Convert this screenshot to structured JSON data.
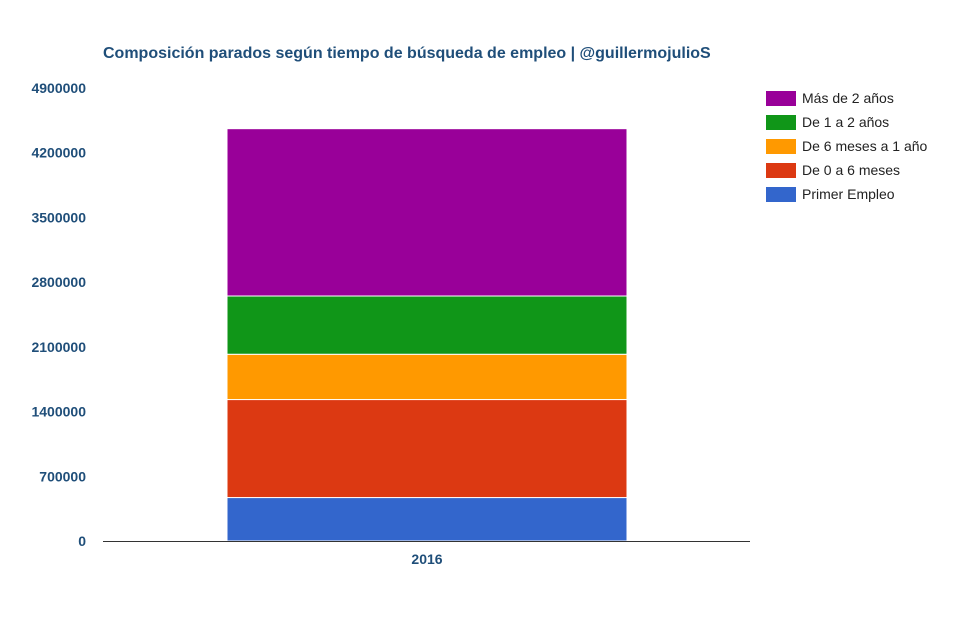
{
  "chart_data": {
    "type": "bar",
    "stacked": true,
    "title": "Composición parados según tiempo de búsqueda de empleo | @guillermojulioS",
    "xlabel": "",
    "ylabel": "",
    "categories": [
      "2016"
    ],
    "ylim": [
      0,
      4900000
    ],
    "yticks": [
      0,
      700000,
      1400000,
      2100000,
      2800000,
      3500000,
      4200000,
      4900000
    ],
    "ytick_labels": [
      "0",
      "700000",
      "1400000",
      "2100000",
      "2800000",
      "3500000",
      "4200000",
      "4900000"
    ],
    "grid": false,
    "legend_position": "right",
    "series": [
      {
        "name": "Primer Empleo",
        "values": [
          470000
        ],
        "color": "#3366cc"
      },
      {
        "name": "De 0 a 6 meses",
        "values": [
          1060000
        ],
        "color": "#dc3912"
      },
      {
        "name": "De 6 meses a 1 año",
        "values": [
          490000
        ],
        "color": "#ff9900"
      },
      {
        "name": "De 1 a 2 años",
        "values": [
          630000
        ],
        "color": "#109618"
      },
      {
        "name": "Más de 2 años",
        "values": [
          1810000
        ],
        "color": "#990099"
      }
    ]
  }
}
